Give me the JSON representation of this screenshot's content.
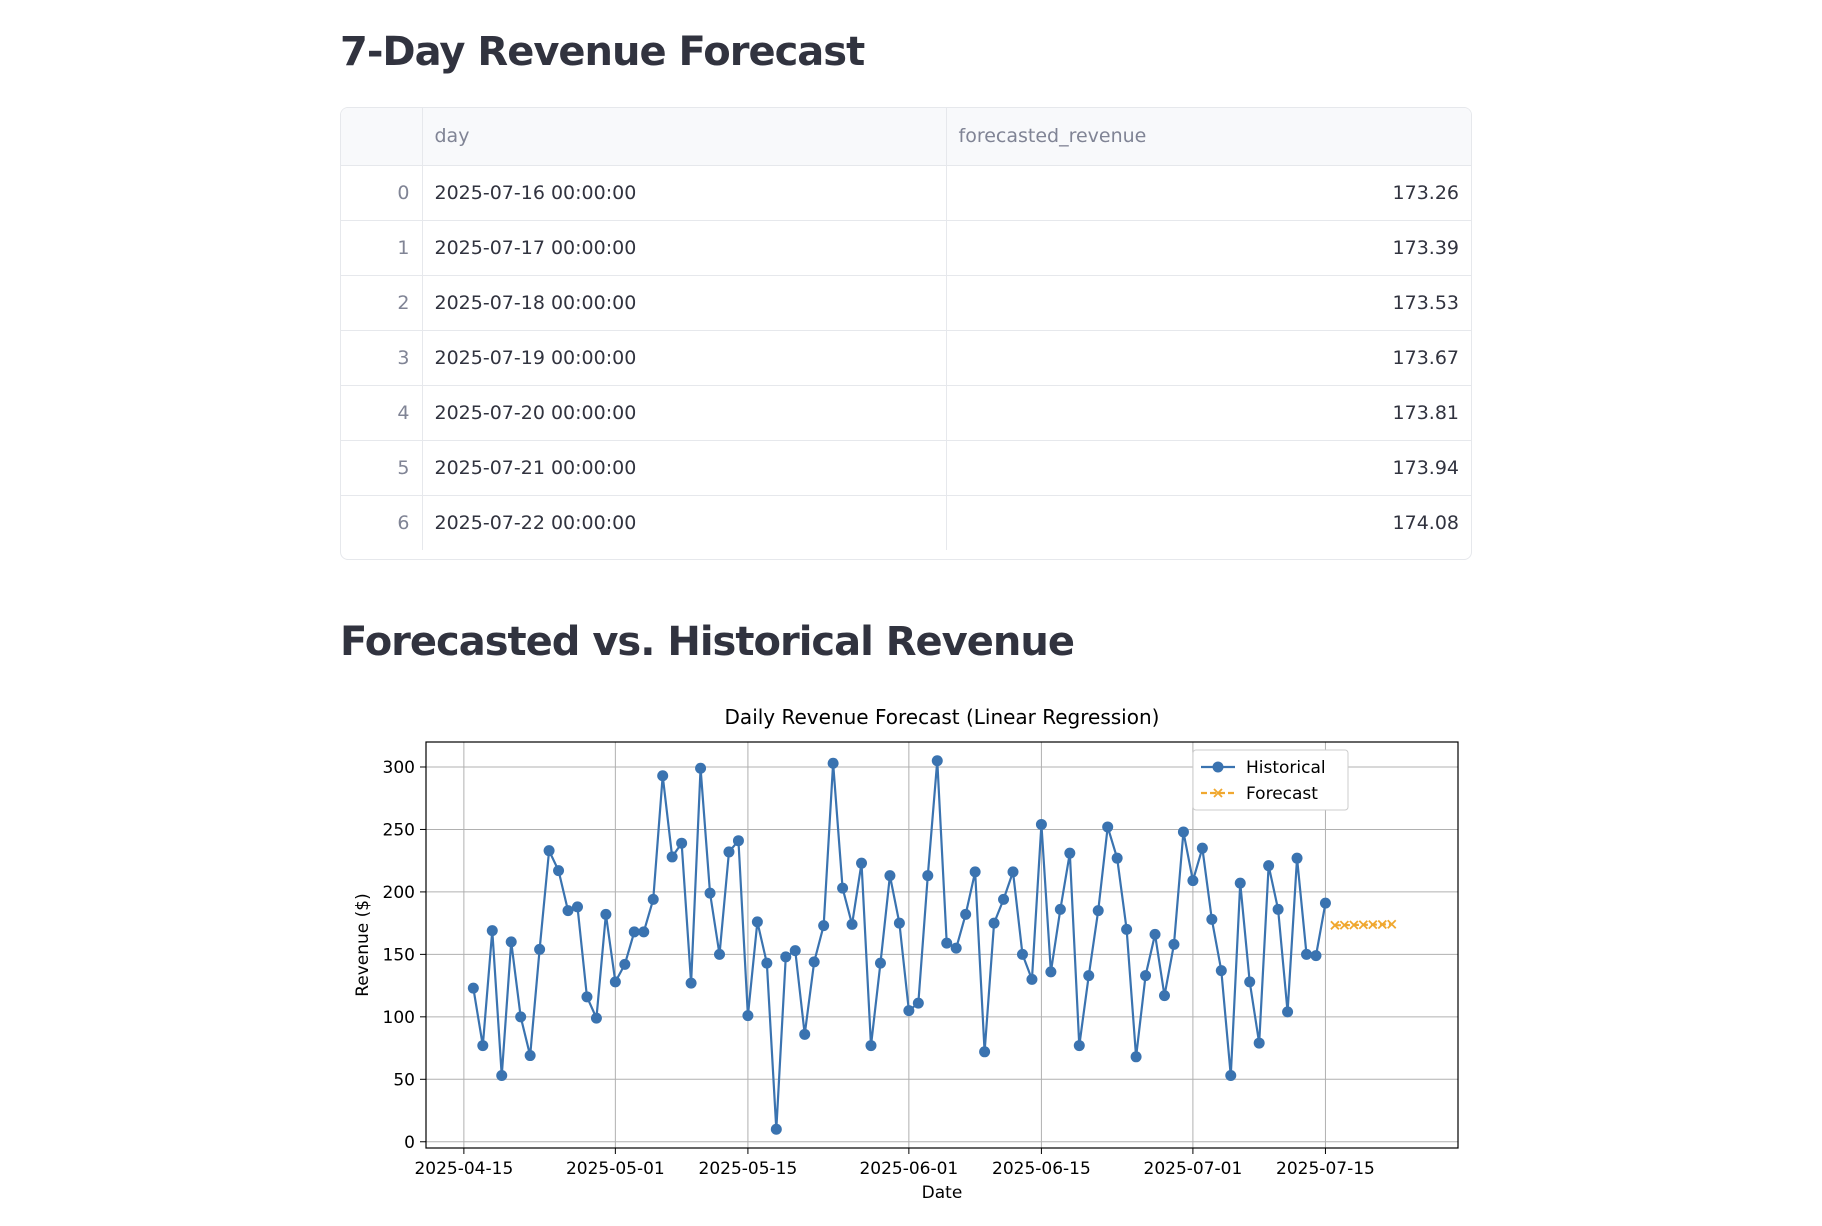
{
  "headings": {
    "forecast_table": "7-Day Revenue Forecast",
    "comparison": "Forecasted vs. Historical Revenue"
  },
  "table": {
    "columns": [
      "",
      "day",
      "forecasted_revenue"
    ],
    "rows": [
      {
        "index": "0",
        "day": "2025-07-16 00:00:00",
        "forecasted_revenue": "173.26"
      },
      {
        "index": "1",
        "day": "2025-07-17 00:00:00",
        "forecasted_revenue": "173.39"
      },
      {
        "index": "2",
        "day": "2025-07-18 00:00:00",
        "forecasted_revenue": "173.53"
      },
      {
        "index": "3",
        "day": "2025-07-19 00:00:00",
        "forecasted_revenue": "173.67"
      },
      {
        "index": "4",
        "day": "2025-07-20 00:00:00",
        "forecasted_revenue": "173.81"
      },
      {
        "index": "5",
        "day": "2025-07-21 00:00:00",
        "forecasted_revenue": "173.94"
      },
      {
        "index": "6",
        "day": "2025-07-22 00:00:00",
        "forecasted_revenue": "174.08"
      }
    ]
  },
  "colors": {
    "historical": "#3a73b0",
    "forecast": "#f0a830",
    "grid": "#b0b0b0"
  },
  "chart_data": {
    "type": "line",
    "title": "Daily Revenue Forecast (Linear Regression)",
    "xlabel": "Date",
    "ylabel": "Revenue ($)",
    "ylim": [
      -5,
      320
    ],
    "xlim": [
      "2025-04-11",
      "2025-07-29"
    ],
    "x_ticks": [
      "2025-04-15",
      "2025-05-01",
      "2025-05-15",
      "2025-06-01",
      "2025-06-15",
      "2025-07-01",
      "2025-07-15"
    ],
    "y_ticks": [
      0,
      50,
      100,
      150,
      200,
      250,
      300
    ],
    "grid": true,
    "legend_position": "top-right",
    "series": [
      {
        "name": "Historical",
        "marker": "circle",
        "start_date": "2025-04-16",
        "values": [
          123,
          77,
          169,
          53,
          160,
          100,
          69,
          154,
          233,
          217,
          185,
          188,
          116,
          99,
          182,
          128,
          142,
          168,
          168,
          194,
          293,
          228,
          239,
          127,
          299,
          199,
          150,
          232,
          241,
          101,
          176,
          143,
          10,
          148,
          153,
          86,
          144,
          173,
          303,
          203,
          174,
          223,
          77,
          143,
          213,
          175,
          105,
          111,
          213,
          305,
          159,
          155,
          182,
          216,
          72,
          175,
          194,
          216,
          150,
          130,
          254,
          136,
          186,
          231,
          77,
          133,
          185,
          252,
          227,
          170,
          68,
          133,
          166,
          117,
          158,
          248,
          209,
          235,
          178,
          137,
          53,
          207,
          128,
          79,
          221,
          186,
          104,
          227,
          150,
          149,
          191
        ]
      },
      {
        "name": "Forecast",
        "marker": "x",
        "start_date": "2025-07-16",
        "values": [
          173.26,
          173.39,
          173.53,
          173.67,
          173.81,
          173.94,
          174.08
        ]
      }
    ]
  }
}
